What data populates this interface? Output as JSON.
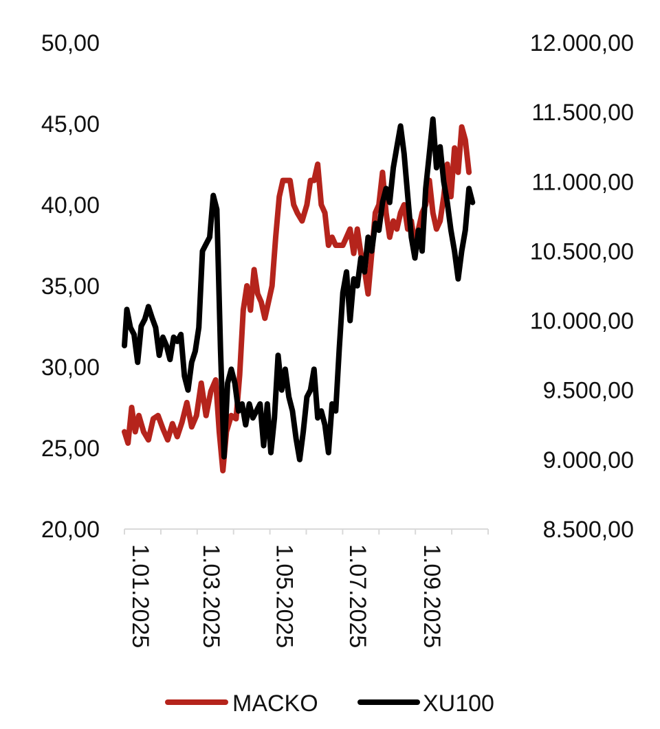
{
  "chart_data": {
    "type": "line",
    "title": "",
    "xlabel": "",
    "ylabel": "",
    "y_left": {
      "range": [
        20,
        50
      ],
      "ticks": [
        20,
        25,
        30,
        35,
        40,
        45,
        50
      ],
      "tick_labels": [
        "20,00",
        "25,00",
        "30,00",
        "35,00",
        "40,00",
        "45,00",
        "50,00"
      ]
    },
    "y_right": {
      "range": [
        8500,
        12000
      ],
      "ticks": [
        8500,
        9000,
        9500,
        10000,
        10500,
        11000,
        11500,
        12000
      ],
      "tick_labels": [
        "8.500,00",
        "9.000,00",
        "9.500,00",
        "10.000,00",
        "10.500,00",
        "11.000,00",
        "11.500,00",
        "12.000,00"
      ]
    },
    "x_axis": {
      "range": [
        "2025-01-01",
        "2025-10-31"
      ],
      "ticks": [
        "2025-01-01",
        "2025-03-01",
        "2025-05-01",
        "2025-07-01",
        "2025-09-01"
      ],
      "tick_labels": [
        "1.01.2025",
        "1.03.2025",
        "1.05.2025",
        "1.07.2025",
        "1.09.2025"
      ]
    },
    "legend_position": "bottom",
    "grid": false,
    "series": [
      {
        "name": "MACKO",
        "axis": "left",
        "color": "#b5241c",
        "points": [
          [
            "2025-01-01",
            26.0
          ],
          [
            "2025-01-04",
            25.3
          ],
          [
            "2025-01-07",
            27.5
          ],
          [
            "2025-01-10",
            26.0
          ],
          [
            "2025-01-13",
            27.0
          ],
          [
            "2025-01-17",
            26.0
          ],
          [
            "2025-01-21",
            25.5
          ],
          [
            "2025-01-25",
            26.8
          ],
          [
            "2025-01-29",
            27.0
          ],
          [
            "2025-02-02",
            26.2
          ],
          [
            "2025-02-06",
            25.5
          ],
          [
            "2025-02-10",
            26.5
          ],
          [
            "2025-02-14",
            25.7
          ],
          [
            "2025-02-18",
            26.6
          ],
          [
            "2025-02-22",
            27.8
          ],
          [
            "2025-02-26",
            26.3
          ],
          [
            "2025-03-02",
            27.0
          ],
          [
            "2025-03-06",
            29.0
          ],
          [
            "2025-03-10",
            27.0
          ],
          [
            "2025-03-14",
            28.5
          ],
          [
            "2025-03-18",
            29.2
          ],
          [
            "2025-03-21",
            26.0
          ],
          [
            "2025-03-24",
            23.6
          ],
          [
            "2025-03-27",
            26.0
          ],
          [
            "2025-03-31",
            27.0
          ],
          [
            "2025-04-04",
            26.8
          ],
          [
            "2025-04-07",
            29.5
          ],
          [
            "2025-04-10",
            33.5
          ],
          [
            "2025-04-13",
            35.0
          ],
          [
            "2025-04-16",
            33.5
          ],
          [
            "2025-04-19",
            36.0
          ],
          [
            "2025-04-22",
            34.5
          ],
          [
            "2025-04-25",
            34.0
          ],
          [
            "2025-04-28",
            33.0
          ],
          [
            "2025-05-01",
            34.0
          ],
          [
            "2025-05-04",
            35.0
          ],
          [
            "2025-05-07",
            38.0
          ],
          [
            "2025-05-10",
            40.5
          ],
          [
            "2025-05-13",
            41.5
          ],
          [
            "2025-05-16",
            41.5
          ],
          [
            "2025-05-19",
            41.5
          ],
          [
            "2025-05-22",
            40.0
          ],
          [
            "2025-05-25",
            39.5
          ],
          [
            "2025-05-29",
            39.0
          ],
          [
            "2025-06-02",
            40.0
          ],
          [
            "2025-06-05",
            41.5
          ],
          [
            "2025-06-08",
            41.5
          ],
          [
            "2025-06-11",
            42.5
          ],
          [
            "2025-06-14",
            40.0
          ],
          [
            "2025-06-17",
            39.5
          ],
          [
            "2025-06-20",
            37.5
          ],
          [
            "2025-06-23",
            38.0
          ],
          [
            "2025-06-26",
            37.5
          ],
          [
            "2025-06-29",
            37.5
          ],
          [
            "2025-07-02",
            37.5
          ],
          [
            "2025-07-05",
            38.0
          ],
          [
            "2025-07-08",
            38.5
          ],
          [
            "2025-07-11",
            37.0
          ],
          [
            "2025-07-14",
            38.5
          ],
          [
            "2025-07-17",
            37.0
          ],
          [
            "2025-07-20",
            36.0
          ],
          [
            "2025-07-23",
            34.5
          ],
          [
            "2025-07-26",
            37.0
          ],
          [
            "2025-07-29",
            39.5
          ],
          [
            "2025-08-01",
            40.0
          ],
          [
            "2025-08-04",
            42.0
          ],
          [
            "2025-08-07",
            39.5
          ],
          [
            "2025-08-10",
            38.0
          ],
          [
            "2025-08-13",
            39.0
          ],
          [
            "2025-08-16",
            38.5
          ],
          [
            "2025-08-19",
            39.5
          ],
          [
            "2025-08-22",
            40.0
          ],
          [
            "2025-08-25",
            38.5
          ],
          [
            "2025-08-28",
            39.0
          ],
          [
            "2025-08-31",
            37.5
          ],
          [
            "2025-09-03",
            38.5
          ],
          [
            "2025-09-06",
            39.5
          ],
          [
            "2025-09-09",
            40.0
          ],
          [
            "2025-09-12",
            41.5
          ],
          [
            "2025-09-15",
            39.5
          ],
          [
            "2025-09-18",
            38.5
          ],
          [
            "2025-09-21",
            39.0
          ],
          [
            "2025-09-24",
            40.5
          ],
          [
            "2025-09-27",
            42.5
          ],
          [
            "2025-09-30",
            40.5
          ],
          [
            "2025-10-03",
            43.5
          ],
          [
            "2025-10-06",
            42.0
          ],
          [
            "2025-10-09",
            44.8
          ],
          [
            "2025-10-12",
            44.0
          ],
          [
            "2025-10-15",
            42.0
          ]
        ]
      },
      {
        "name": "XU100",
        "axis": "right",
        "color": "#000000",
        "points": [
          [
            "2025-01-01",
            9820
          ],
          [
            "2025-01-03",
            10080
          ],
          [
            "2025-01-06",
            9950
          ],
          [
            "2025-01-09",
            9900
          ],
          [
            "2025-01-12",
            9700
          ],
          [
            "2025-01-15",
            9960
          ],
          [
            "2025-01-18",
            10010
          ],
          [
            "2025-01-21",
            10100
          ],
          [
            "2025-01-24",
            10020
          ],
          [
            "2025-01-27",
            9950
          ],
          [
            "2025-01-30",
            9750
          ],
          [
            "2025-02-02",
            9880
          ],
          [
            "2025-02-05",
            9820
          ],
          [
            "2025-02-08",
            9720
          ],
          [
            "2025-02-11",
            9880
          ],
          [
            "2025-02-14",
            9850
          ],
          [
            "2025-02-17",
            9900
          ],
          [
            "2025-02-20",
            9600
          ],
          [
            "2025-02-23",
            9500
          ],
          [
            "2025-02-26",
            9700
          ],
          [
            "2025-03-01",
            9780
          ],
          [
            "2025-03-04",
            9950
          ],
          [
            "2025-03-07",
            10500
          ],
          [
            "2025-03-10",
            10550
          ],
          [
            "2025-03-13",
            10600
          ],
          [
            "2025-03-16",
            10900
          ],
          [
            "2025-03-19",
            10800
          ],
          [
            "2025-03-22",
            9800
          ],
          [
            "2025-03-25",
            9020
          ],
          [
            "2025-03-28",
            9550
          ],
          [
            "2025-03-31",
            9650
          ],
          [
            "2025-04-03",
            9550
          ],
          [
            "2025-04-06",
            9350
          ],
          [
            "2025-04-09",
            9400
          ],
          [
            "2025-04-12",
            9250
          ],
          [
            "2025-04-15",
            9400
          ],
          [
            "2025-04-18",
            9300
          ],
          [
            "2025-04-21",
            9350
          ],
          [
            "2025-04-24",
            9400
          ],
          [
            "2025-04-27",
            9100
          ],
          [
            "2025-04-30",
            9400
          ],
          [
            "2025-05-03",
            9050
          ],
          [
            "2025-05-06",
            9300
          ],
          [
            "2025-05-09",
            9750
          ],
          [
            "2025-05-12",
            9500
          ],
          [
            "2025-05-15",
            9650
          ],
          [
            "2025-05-18",
            9450
          ],
          [
            "2025-05-21",
            9350
          ],
          [
            "2025-05-24",
            9150
          ],
          [
            "2025-05-27",
            9000
          ],
          [
            "2025-05-30",
            9200
          ],
          [
            "2025-06-02",
            9450
          ],
          [
            "2025-06-05",
            9500
          ],
          [
            "2025-06-08",
            9650
          ],
          [
            "2025-06-11",
            9300
          ],
          [
            "2025-06-14",
            9350
          ],
          [
            "2025-06-17",
            9250
          ],
          [
            "2025-06-20",
            9050
          ],
          [
            "2025-06-23",
            9400
          ],
          [
            "2025-06-26",
            9350
          ],
          [
            "2025-06-29",
            9800
          ],
          [
            "2025-07-02",
            10200
          ],
          [
            "2025-07-05",
            10350
          ],
          [
            "2025-07-08",
            10000
          ],
          [
            "2025-07-11",
            10300
          ],
          [
            "2025-07-14",
            10250
          ],
          [
            "2025-07-17",
            10450
          ],
          [
            "2025-07-20",
            10350
          ],
          [
            "2025-07-23",
            10600
          ],
          [
            "2025-07-26",
            10500
          ],
          [
            "2025-07-29",
            10700
          ],
          [
            "2025-08-01",
            10650
          ],
          [
            "2025-08-04",
            10850
          ],
          [
            "2025-08-07",
            10950
          ],
          [
            "2025-08-10",
            10850
          ],
          [
            "2025-08-13",
            11100
          ],
          [
            "2025-08-16",
            11250
          ],
          [
            "2025-08-19",
            11400
          ],
          [
            "2025-08-22",
            11200
          ],
          [
            "2025-08-25",
            10900
          ],
          [
            "2025-08-28",
            10600
          ],
          [
            "2025-08-31",
            10450
          ],
          [
            "2025-09-03",
            10650
          ],
          [
            "2025-09-06",
            10500
          ],
          [
            "2025-09-09",
            10950
          ],
          [
            "2025-09-12",
            11200
          ],
          [
            "2025-09-15",
            11450
          ],
          [
            "2025-09-18",
            11100
          ],
          [
            "2025-09-21",
            11250
          ],
          [
            "2025-09-24",
            11000
          ],
          [
            "2025-09-27",
            10850
          ],
          [
            "2025-09-30",
            10650
          ],
          [
            "2025-10-03",
            10500
          ],
          [
            "2025-10-06",
            10300
          ],
          [
            "2025-10-09",
            10500
          ],
          [
            "2025-10-12",
            10650
          ],
          [
            "2025-10-15",
            10950
          ],
          [
            "2025-10-18",
            10850
          ]
        ]
      }
    ]
  }
}
